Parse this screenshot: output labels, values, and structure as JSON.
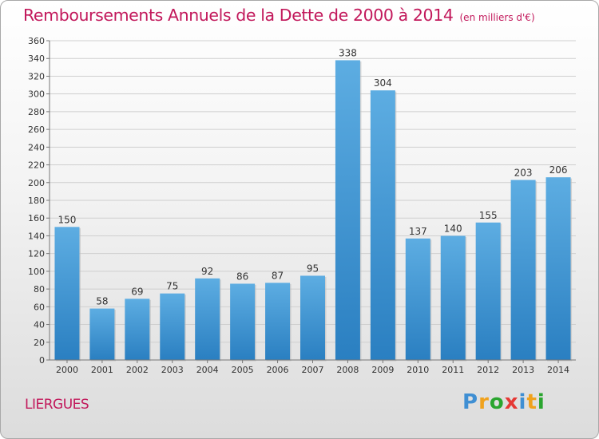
{
  "header": {
    "title": "Remboursements Annuels de la Dette de 2000 à 2014",
    "unit": "(en milliers d'€)"
  },
  "footer": {
    "commune": "LIERGUES",
    "logo_text": "Proxiti"
  },
  "colors": {
    "title": "#c2185b",
    "bar_top": "#5dade2",
    "bar_bottom": "#2a7fc1"
  },
  "chart_data": {
    "type": "bar",
    "title": "Remboursements Annuels de la Dette de 2000 à 2014",
    "categories": [
      "2000",
      "2001",
      "2002",
      "2003",
      "2004",
      "2005",
      "2006",
      "2007",
      "2008",
      "2009",
      "2010",
      "2011",
      "2012",
      "2013",
      "2014"
    ],
    "values": [
      150,
      58,
      69,
      75,
      92,
      86,
      87,
      95,
      338,
      304,
      137,
      140,
      155,
      203,
      206
    ],
    "ylim": [
      0,
      360
    ],
    "yticks": [
      0,
      20,
      40,
      60,
      80,
      100,
      120,
      140,
      160,
      180,
      200,
      220,
      240,
      260,
      280,
      300,
      320,
      340,
      360
    ],
    "grid": true,
    "legend": "none"
  }
}
